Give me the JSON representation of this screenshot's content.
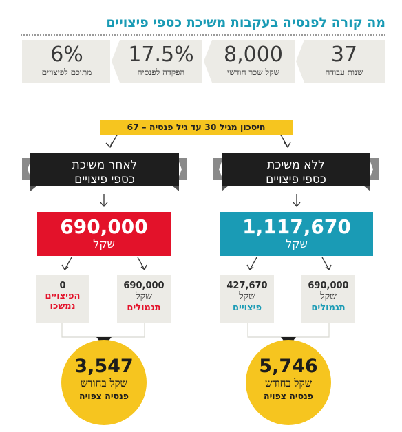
{
  "title": "מה קורה לפנסיה בעקבות משיכת כספי פיצויים",
  "stats": [
    {
      "value": "37",
      "label": "שנות עבודה"
    },
    {
      "value": "8,000",
      "label": "שקל שכר חודשי"
    },
    {
      "value": "17.5%",
      "label": "הפקדה לפנסיה"
    },
    {
      "value": "6%",
      "label": "מתוכם לפיצויים"
    }
  ],
  "savings_tag": "חיסכון מגיל 30 עד גיל פנסיה – 67",
  "right_branch": {
    "banner_line1": "ללא משיכת",
    "banner_line2": "כספי פיצויים",
    "total": "1,117,670",
    "total_unit": "שקל",
    "parts": [
      {
        "value": "427,670",
        "unit": "שקל",
        "kind": "פיצויים"
      },
      {
        "value": "690,000",
        "unit": "שקל",
        "kind": "תגמולים"
      }
    ],
    "pension_value": "5,746",
    "pension_unit": "שקל בחודש",
    "pension_label": "פנסיה צפויה"
  },
  "left_branch": {
    "banner_line1": "לאחר משיכת",
    "banner_line2": "כספי פיצויים",
    "total": "690,000",
    "total_unit": "שקל",
    "withdrawn": {
      "value": "0",
      "line1": "הפיצויים",
      "line2": "נמשכו"
    },
    "kept": {
      "value": "690,000",
      "unit": "שקל",
      "kind": "תגמולים"
    },
    "pension_value": "3,547",
    "pension_unit": "שקל בחודש",
    "pension_label": "פנסיה צפויה"
  },
  "colors": {
    "title": "#1a9bb5",
    "teal": "#1a9bb5",
    "red": "#e3122a",
    "yellow": "#f6c51f",
    "banner": "#1e1e1e",
    "panel": "#ecebe6"
  }
}
